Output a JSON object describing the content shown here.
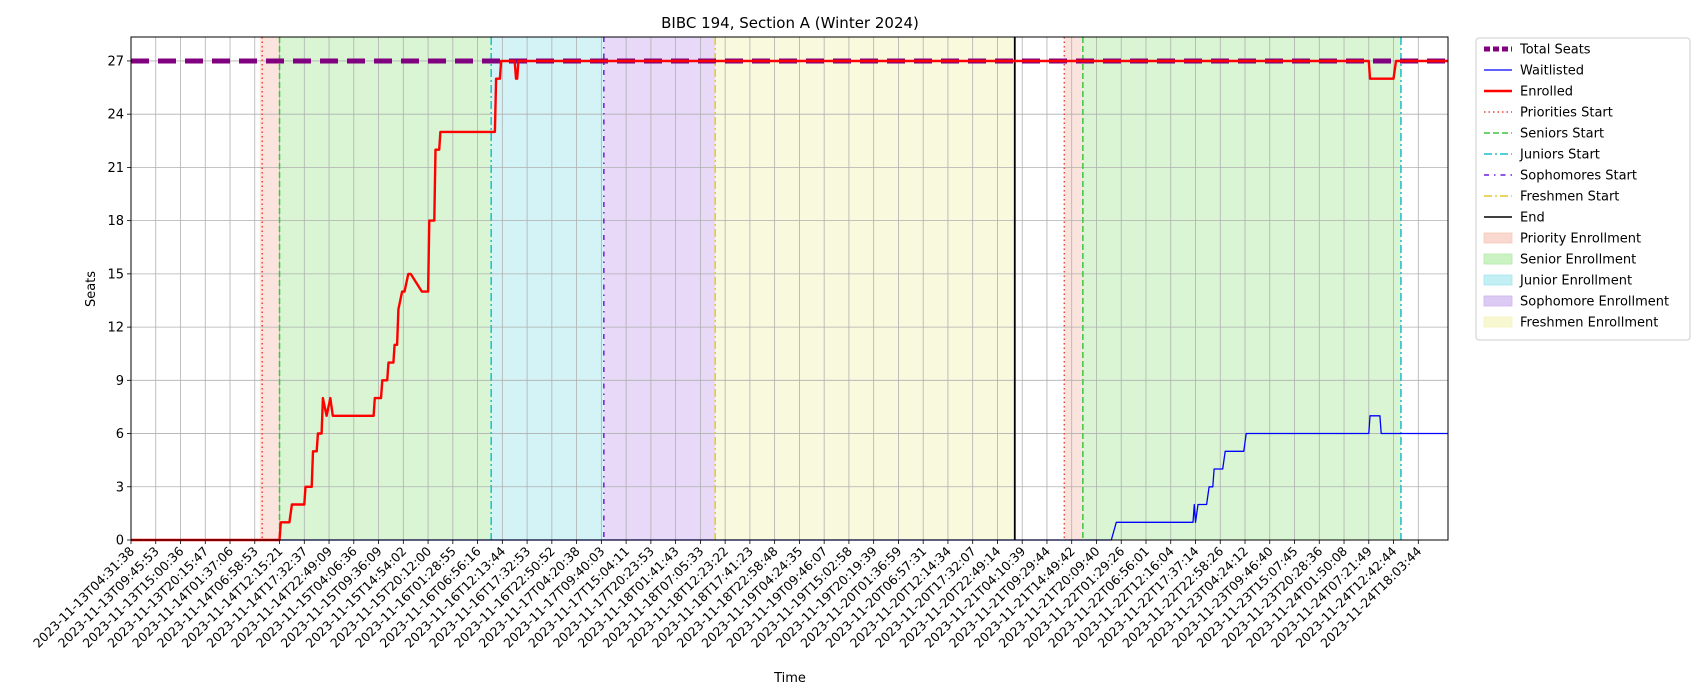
{
  "chart_data": {
    "type": "line",
    "title": "BIBC 194, Section A (Winter 2024)",
    "xlabel": "Time",
    "ylabel": "Seats",
    "ylim": [
      0,
      28.35
    ],
    "yticks": [
      0,
      3,
      6,
      9,
      12,
      15,
      18,
      21,
      24,
      27
    ],
    "xlim": [
      0,
      53.2
    ],
    "grid": true,
    "legend_position": "outside-right",
    "x_tick_labels": [
      "2023-11-13T04:31:38",
      "2023-11-13T09:45:53",
      "2023-11-13T15:00:36",
      "2023-11-13T20:15:47",
      "2023-11-14T01:37:06",
      "2023-11-14T06:58:53",
      "2023-11-14T12:15:21",
      "2023-11-14T17:32:37",
      "2023-11-14T22:49:09",
      "2023-11-15T04:06:36",
      "2023-11-15T09:36:09",
      "2023-11-15T14:54:02",
      "2023-11-15T20:12:00",
      "2023-11-16T01:28:55",
      "2023-11-16T06:56:16",
      "2023-11-16T12:13:44",
      "2023-11-16T17:32:53",
      "2023-11-16T22:50:52",
      "2023-11-17T04:20:38",
      "2023-11-17T09:40:03",
      "2023-11-17T15:04:11",
      "2023-11-17T20:23:53",
      "2023-11-18T01:41:43",
      "2023-11-18T07:05:33",
      "2023-11-18T12:23:22",
      "2023-11-18T17:41:23",
      "2023-11-18T22:58:48",
      "2023-11-19T04:24:35",
      "2023-11-19T09:46:07",
      "2023-11-19T15:02:58",
      "2023-11-19T20:19:39",
      "2023-11-20T01:36:59",
      "2023-11-20T06:57:31",
      "2023-11-20T12:14:34",
      "2023-11-20T17:32:07",
      "2023-11-20T22:49:14",
      "2023-11-21T04:10:39",
      "2023-11-21T09:29:44",
      "2023-11-21T14:49:42",
      "2023-11-21T20:09:40",
      "2023-11-22T01:29:26",
      "2023-11-22T06:56:01",
      "2023-11-22T12:16:04",
      "2023-11-22T17:37:14",
      "2023-11-22T22:58:26",
      "2023-11-23T04:24:12",
      "2023-11-23T09:46:40",
      "2023-11-23T15:07:45",
      "2023-11-23T20:28:36",
      "2023-11-24T01:50:08",
      "2023-11-24T07:21:49",
      "2023-11-24T12:42:44",
      "2023-11-24T18:03:44"
    ],
    "spans": [
      {
        "name": "Priority Enrollment",
        "start": 5.2,
        "end": 6.0,
        "color": "#f7c9bb"
      },
      {
        "name": "Senior Enrollment",
        "start": 6.0,
        "end": 14.55,
        "color": "#b4ecaa"
      },
      {
        "name": "Junior Enrollment",
        "start": 14.55,
        "end": 19.1,
        "color": "#a7e8ee"
      },
      {
        "name": "Sophomore Enrollment",
        "start": 19.1,
        "end": 23.6,
        "color": "#cfb4ef"
      },
      {
        "name": "Freshmen Enrollment",
        "start": 23.6,
        "end": 35.7,
        "color": "#f4f4be"
      },
      {
        "name": "Priority Enrollment",
        "start": 37.7,
        "end": 38.45,
        "color": "#f7c9bb"
      },
      {
        "name": "Senior Enrollment",
        "start": 38.45,
        "end": 51.3,
        "color": "#b4ecaa"
      }
    ],
    "vlines": [
      {
        "name": "Priorities Start",
        "x": 5.3,
        "color": "#e8473a",
        "dash": "1.5,3"
      },
      {
        "name": "Seniors Start",
        "x": 6.0,
        "color": "#3ec43e",
        "dash": "6,3"
      },
      {
        "name": "Juniors Start",
        "x": 14.55,
        "color": "#1bbed0",
        "dash": "8,3,2,3"
      },
      {
        "name": "Sophomores Start",
        "x": 19.1,
        "color": "#6a1ee0",
        "dash": "5,5,1.5,5"
      },
      {
        "name": "Freshmen Start",
        "x": 23.6,
        "color": "#e2cc2a",
        "dash": "8,3,2,3"
      },
      {
        "name": "End",
        "x": 35.7,
        "color": "#000000",
        "dash": ""
      },
      {
        "name": "Priorities Start",
        "x": 37.7,
        "color": "#e8473a",
        "dash": "1.5,3"
      },
      {
        "name": "Seniors Start",
        "x": 38.45,
        "color": "#3ec43e",
        "dash": "6,3"
      },
      {
        "name": "Juniors Start",
        "x": 51.3,
        "color": "#1bbed0",
        "dash": "8,3,2,3"
      }
    ],
    "series": [
      {
        "name": "Total Seats",
        "color": "#800080",
        "style": "dashed-thick",
        "x": [
          0,
          53.2
        ],
        "y": [
          27,
          27
        ]
      },
      {
        "name": "Waitlisted",
        "color": "#0000ff",
        "style": "solid-thin",
        "x": [
          0,
          39.6,
          39.8,
          42.9,
          42.95,
          43.0,
          43.1,
          43.45,
          43.55,
          43.7,
          43.75,
          44.1,
          44.2,
          44.95,
          45.05,
          50.0,
          50.05,
          50.45,
          50.5,
          53.2
        ],
        "y": [
          0,
          0,
          1,
          1,
          2,
          1,
          2,
          2,
          3,
          3,
          4,
          4,
          5,
          5,
          6,
          6,
          7,
          7,
          6,
          6
        ]
      },
      {
        "name": "Enrolled",
        "color": "#ff0000",
        "style": "solid-thick",
        "x": [
          0,
          6.0,
          6.05,
          6.4,
          6.5,
          7.0,
          7.05,
          7.3,
          7.35,
          7.5,
          7.55,
          7.7,
          7.75,
          7.9,
          8.05,
          8.15,
          8.3,
          8.35,
          9.8,
          9.85,
          10.1,
          10.15,
          10.35,
          10.4,
          10.6,
          10.65,
          10.75,
          10.8,
          10.95,
          11.05,
          11.2,
          11.3,
          11.75,
          12.0,
          12.05,
          12.25,
          12.3,
          12.45,
          12.5,
          14.55,
          14.7,
          14.75,
          14.9,
          14.95,
          15.5,
          15.55,
          15.6,
          15.65,
          35.7,
          37.7,
          38.0,
          50.0,
          50.05,
          51.0,
          51.1,
          53.2
        ],
        "y": [
          0,
          0,
          1,
          1,
          2,
          2,
          3,
          3,
          5,
          5,
          6,
          6,
          8,
          7,
          8,
          7,
          7,
          7,
          7,
          8,
          8,
          9,
          9,
          10,
          10,
          11,
          11,
          13,
          14,
          14,
          15,
          15,
          14,
          14,
          18,
          18,
          22,
          22,
          23,
          23,
          23,
          26,
          26,
          27,
          27,
          26,
          26,
          27,
          27,
          27,
          27,
          27,
          26,
          26,
          27,
          27
        ]
      }
    ],
    "legend": [
      {
        "label": "Total Seats",
        "kind": "line",
        "color": "#800080",
        "dash": "6,3",
        "width": 5
      },
      {
        "label": "Waitlisted",
        "kind": "line",
        "color": "#0000ff",
        "dash": "",
        "width": 1.2
      },
      {
        "label": "Enrolled",
        "kind": "line",
        "color": "#ff0000",
        "dash": "",
        "width": 2.4
      },
      {
        "label": "Priorities Start",
        "kind": "line",
        "color": "#e8473a",
        "dash": "1.5,3",
        "width": 1.5
      },
      {
        "label": "Seniors Start",
        "kind": "line",
        "color": "#3ec43e",
        "dash": "6,3",
        "width": 1.5
      },
      {
        "label": "Juniors Start",
        "kind": "line",
        "color": "#1bbed0",
        "dash": "8,3,2,3",
        "width": 1.5
      },
      {
        "label": "Sophomores Start",
        "kind": "line",
        "color": "#6a1ee0",
        "dash": "5,5,1.5,5",
        "width": 1.5
      },
      {
        "label": "Freshmen Start",
        "kind": "line",
        "color": "#e2cc2a",
        "dash": "8,3,2,3",
        "width": 1.5
      },
      {
        "label": "End",
        "kind": "line",
        "color": "#000000",
        "dash": "",
        "width": 1.5
      },
      {
        "label": "Priority Enrollment",
        "kind": "patch",
        "color": "#f7c9bb"
      },
      {
        "label": "Senior Enrollment",
        "kind": "patch",
        "color": "#b4ecaa"
      },
      {
        "label": "Junior Enrollment",
        "kind": "patch",
        "color": "#a7e8ee"
      },
      {
        "label": "Sophomore Enrollment",
        "kind": "patch",
        "color": "#cfb4ef"
      },
      {
        "label": "Freshmen Enrollment",
        "kind": "patch",
        "color": "#f4f4be"
      }
    ]
  }
}
